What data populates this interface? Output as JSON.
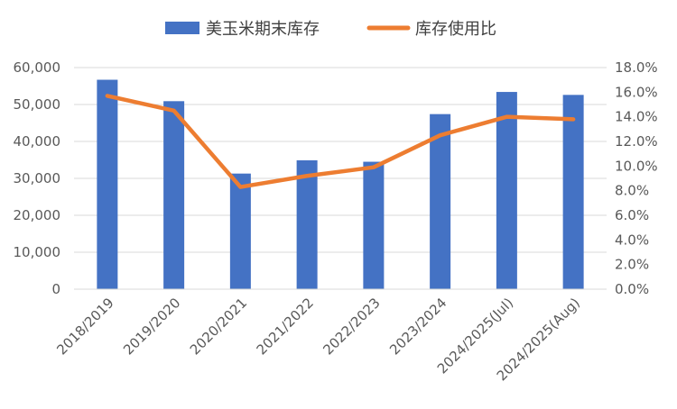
{
  "chart_data": {
    "type": "bar",
    "categories": [
      "2018/2019",
      "2019/2020",
      "2020/2021",
      "2021/2022",
      "2022/2023",
      "2023/2024",
      "2024/2025(Jul)",
      "2024/2025(Aug)"
    ],
    "series": [
      {
        "name": "美玉米期末库存",
        "type": "bar",
        "axis": "left",
        "color": "#4472C4",
        "values": [
          56700,
          50900,
          31300,
          34900,
          34500,
          47400,
          53400,
          52600
        ]
      },
      {
        "name": "库存使用比",
        "type": "line",
        "axis": "right",
        "color": "#ED7D31",
        "values": [
          15.7,
          14.5,
          8.3,
          9.2,
          9.9,
          12.5,
          14.0,
          13.8
        ]
      }
    ],
    "ylim_left": [
      0,
      60000
    ],
    "yticks_left": [
      "0",
      "10,000",
      "20,000",
      "30,000",
      "40,000",
      "50,000",
      "60,000"
    ],
    "ylim_right": [
      0,
      18
    ],
    "yticks_right": [
      "0.0%",
      "2.0%",
      "4.0%",
      "6.0%",
      "8.0%",
      "10.0%",
      "12.0%",
      "14.0%",
      "16.0%",
      "18.0%"
    ],
    "grid": true,
    "legend_position": "top"
  }
}
